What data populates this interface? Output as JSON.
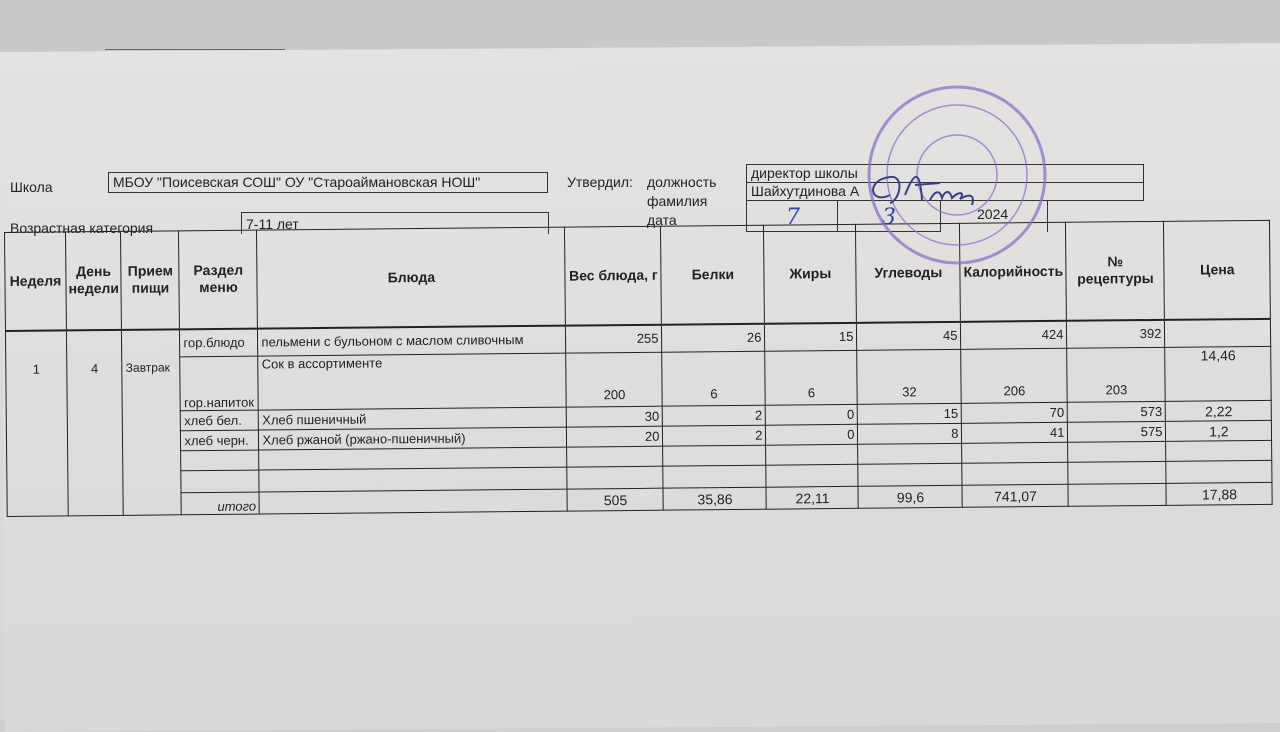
{
  "header": {
    "school_label": "Школа",
    "school_value": "МБОУ \"Поисевская СОШ\" ОУ \"Староаймановская НОШ\"",
    "age_label": "Возрастная категория",
    "age_value": "7-11 лет",
    "approved_label": "Утвердил:",
    "position_label": "должность",
    "position_value": "директор школы",
    "surname_label": "фамилия",
    "surname_value": "Шайхутдинова А",
    "date_label": "дата",
    "date_day": "7",
    "date_month": "3",
    "date_year": "2024"
  },
  "table": {
    "columns": [
      "Неделя",
      "День недели",
      "Прием пищи",
      "Раздел меню",
      "Блюда",
      "Вес блюда, г",
      "Белки",
      "Жиры",
      "Углеводы",
      "Калорийность",
      "№ рецептуры",
      "Цена"
    ],
    "week": "1",
    "day": "4",
    "meal": "Завтрак",
    "rows": [
      {
        "section": "гор.блюдо",
        "dish": "пельмени с бульоном с маслом сливочным",
        "weight": "255",
        "protein": "26",
        "fat": "15",
        "carbs": "45",
        "kcal": "424",
        "recipe": "392",
        "price": ""
      },
      {
        "section": "гор.напиток",
        "dish": "Сок в ассортименте",
        "weight": "200",
        "protein": "6",
        "fat": "6",
        "carbs": "32",
        "kcal": "206",
        "recipe": "203",
        "price": "14,46"
      },
      {
        "section": "хлеб бел.",
        "dish": "Хлеб пшеничный",
        "weight": "30",
        "protein": "2",
        "fat": "0",
        "carbs": "15",
        "kcal": "70",
        "recipe": "573",
        "price": "2,22"
      },
      {
        "section": "хлеб черн.",
        "dish": "Хлеб ржаной (ржано-пшеничный)",
        "weight": "20",
        "protein": "2",
        "fat": "0",
        "carbs": "8",
        "kcal": "41",
        "recipe": "575",
        "price": "1,2"
      }
    ],
    "total": {
      "label": "итого",
      "weight": "505",
      "protein": "35,86",
      "fat": "22,11",
      "carbs": "99,6",
      "kcal": "741,07",
      "recipe": "",
      "price": "17,88"
    }
  },
  "stamp": {
    "text": "МУНИЦИПАЛЬНОЕ БЮДЖЕТНОЕ ОБЩЕОБРАЗОВАТЕЛЬНОЕ УЧРЕЖДЕНИЕ ПОИСЕВСКАЯ СОШ",
    "color": "#8a72c8"
  },
  "colors": {
    "ink": "#222222",
    "handwriting": "#3340b0",
    "paper": "#e0dfdd"
  }
}
